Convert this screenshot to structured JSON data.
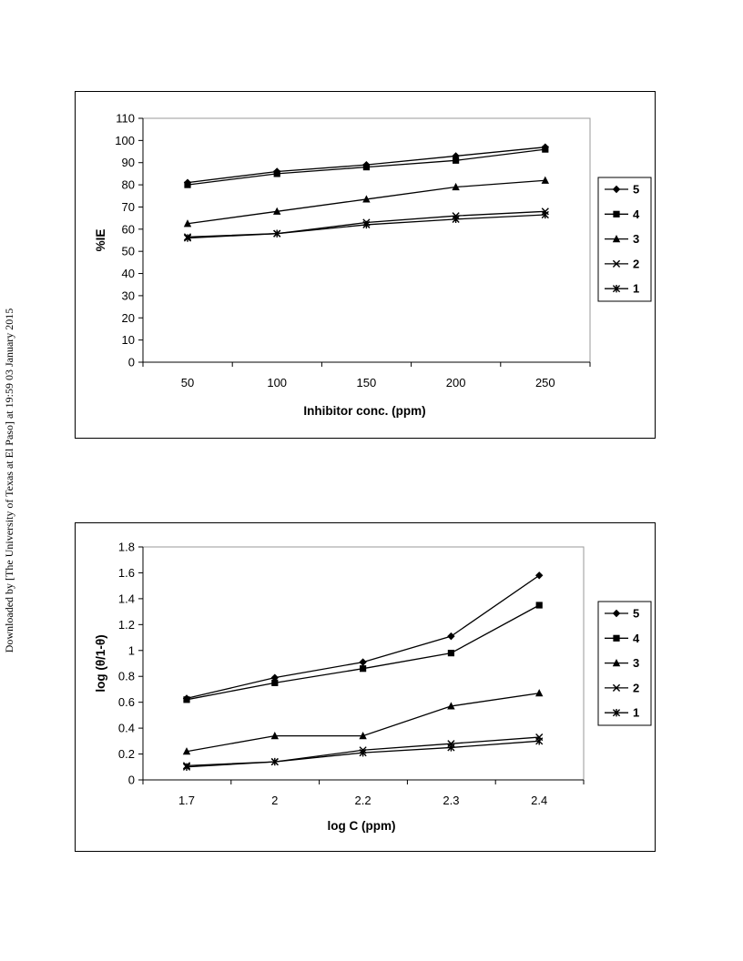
{
  "watermark": {
    "text": "Downloaded by [The University of Texas at El Paso] at 19:59 03 January 2015"
  },
  "chart_data": [
    {
      "type": "line",
      "title": "",
      "xlabel": "Inhibitor conc. (ppm)",
      "ylabel": "%IE",
      "categories": [
        "50",
        "100",
        "150",
        "200",
        "250"
      ],
      "ylim": [
        0,
        110
      ],
      "yticks": [
        0,
        10,
        20,
        30,
        40,
        50,
        60,
        70,
        80,
        90,
        100,
        110
      ],
      "grid": false,
      "legend_position": "right",
      "series": [
        {
          "name": "5",
          "marker": "diamond",
          "values": [
            81,
            86,
            89,
            93,
            97
          ]
        },
        {
          "name": "4",
          "marker": "square",
          "values": [
            80,
            85,
            88,
            91,
            96
          ]
        },
        {
          "name": "3",
          "marker": "triangle",
          "values": [
            62.5,
            68,
            73.5,
            79,
            82
          ]
        },
        {
          "name": "2",
          "marker": "x",
          "values": [
            56.5,
            58,
            63,
            66,
            68
          ]
        },
        {
          "name": "1",
          "marker": "star",
          "values": [
            56,
            58,
            62,
            64.5,
            66.5
          ]
        }
      ]
    },
    {
      "type": "line",
      "title": "",
      "xlabel": "log C (ppm)",
      "ylabel": "log (θ/1-θ)",
      "categories": [
        "1.7",
        "2",
        "2.2",
        "2.3",
        "2.4"
      ],
      "ylim": [
        0,
        1.8
      ],
      "yticks": [
        "0",
        "0.2",
        "0.4",
        "0.6",
        "0.8",
        "1",
        "1.2",
        "1.4",
        "1.6",
        "1.8"
      ],
      "grid": false,
      "legend_position": "right",
      "series": [
        {
          "name": "5",
          "marker": "diamond",
          "values": [
            0.63,
            0.79,
            0.91,
            1.11,
            1.58
          ]
        },
        {
          "name": "4",
          "marker": "square",
          "values": [
            0.62,
            0.75,
            0.86,
            0.98,
            1.35
          ]
        },
        {
          "name": "3",
          "marker": "triangle",
          "values": [
            0.22,
            0.34,
            0.34,
            0.57,
            0.67
          ]
        },
        {
          "name": "2",
          "marker": "x",
          "values": [
            0.11,
            0.14,
            0.23,
            0.28,
            0.33
          ]
        },
        {
          "name": "1",
          "marker": "star",
          "values": [
            0.1,
            0.14,
            0.21,
            0.25,
            0.3
          ]
        }
      ]
    }
  ]
}
